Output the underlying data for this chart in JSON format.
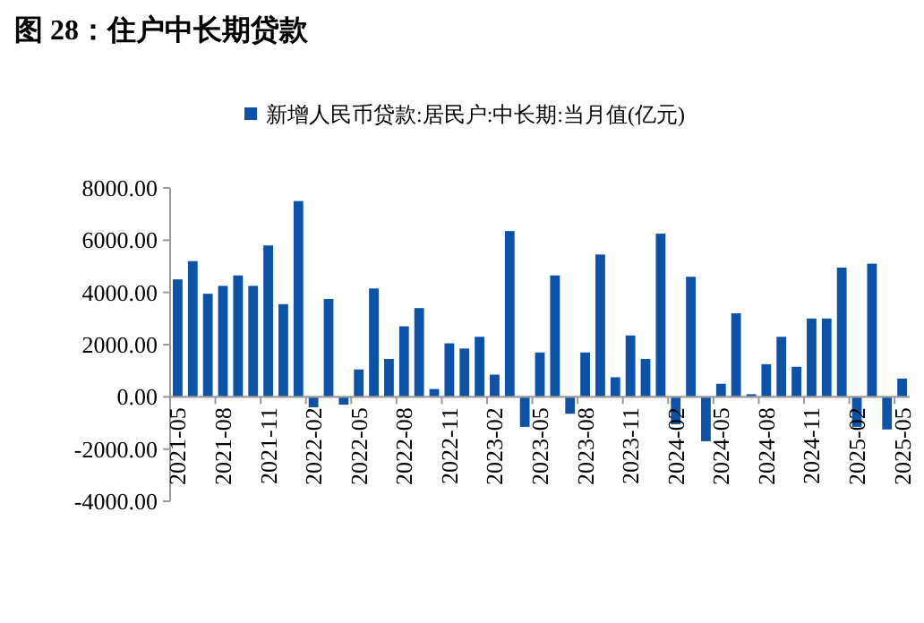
{
  "chart_data": {
    "type": "bar",
    "title": "图 28：住户中长期贷款",
    "categories": [
      "2021-05",
      null,
      null,
      "2021-08",
      null,
      null,
      "2021-11",
      null,
      null,
      "2022-02",
      null,
      null,
      "2022-05",
      null,
      null,
      "2022-08",
      null,
      null,
      "2022-11",
      null,
      null,
      "2023-02",
      null,
      null,
      "2023-05",
      null,
      null,
      "2023-08",
      null,
      null,
      "2023-11",
      null,
      null,
      "2024-02",
      null,
      null,
      "2024-05",
      null,
      null,
      "2024-08",
      null,
      null,
      "2024-11",
      null,
      null,
      "2025-02",
      null,
      null,
      "2025-05"
    ],
    "series": [
      {
        "name": "新增人民币贷款:居民户:中长期:当月值(亿元)",
        "color": "#0b52a8",
        "values": [
          4500,
          5200,
          3950,
          4250,
          4650,
          4250,
          5800,
          3550,
          7500,
          -400,
          3750,
          -300,
          1050,
          4150,
          1450,
          2700,
          3400,
          300,
          2050,
          1850,
          2300,
          850,
          6350,
          -1150,
          1700,
          4650,
          -650,
          1700,
          5450,
          750,
          2350,
          1450,
          6250,
          -1050,
          4600,
          -1700,
          500,
          3200,
          100,
          1250,
          2300,
          1150,
          3000,
          3000,
          4950,
          -1150,
          5100,
          -1250,
          700
        ]
      }
    ],
    "ylim": [
      -4000,
      8000
    ],
    "yticks": [
      {
        "value": -4000,
        "label": "-4000.00"
      },
      {
        "value": -2000,
        "label": "-2000.00"
      },
      {
        "value": 0,
        "label": "0.00"
      },
      {
        "value": 2000,
        "label": "2000.00"
      },
      {
        "value": 4000,
        "label": "4000.00"
      },
      {
        "value": 6000,
        "label": "6000.00"
      },
      {
        "value": 8000,
        "label": "8000.00"
      }
    ],
    "legend": "top",
    "grid": false
  }
}
